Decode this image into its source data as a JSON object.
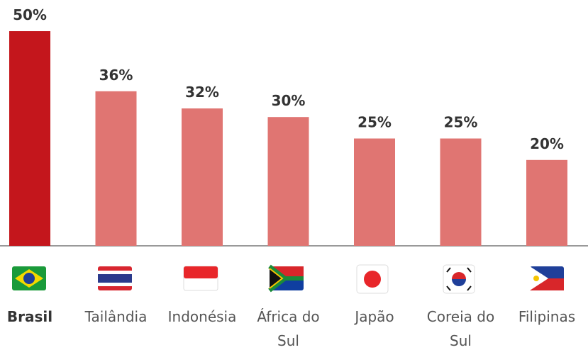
{
  "chart_data": {
    "type": "bar",
    "categories": [
      "Brasil",
      "Tailândia",
      "Indonésia",
      "África do Sul",
      "Japão",
      "Coreia do Sul",
      "Filipinas"
    ],
    "values": [
      50,
      36,
      32,
      30,
      25,
      25,
      20
    ],
    "value_labels": [
      "50%",
      "36%",
      "32%",
      "30%",
      "25%",
      "25%",
      "20%"
    ],
    "colors": [
      "#c4161c",
      "#e07572",
      "#e07572",
      "#e07572",
      "#e07572",
      "#e07572",
      "#e07572"
    ],
    "ylim": [
      0,
      50
    ]
  }
}
